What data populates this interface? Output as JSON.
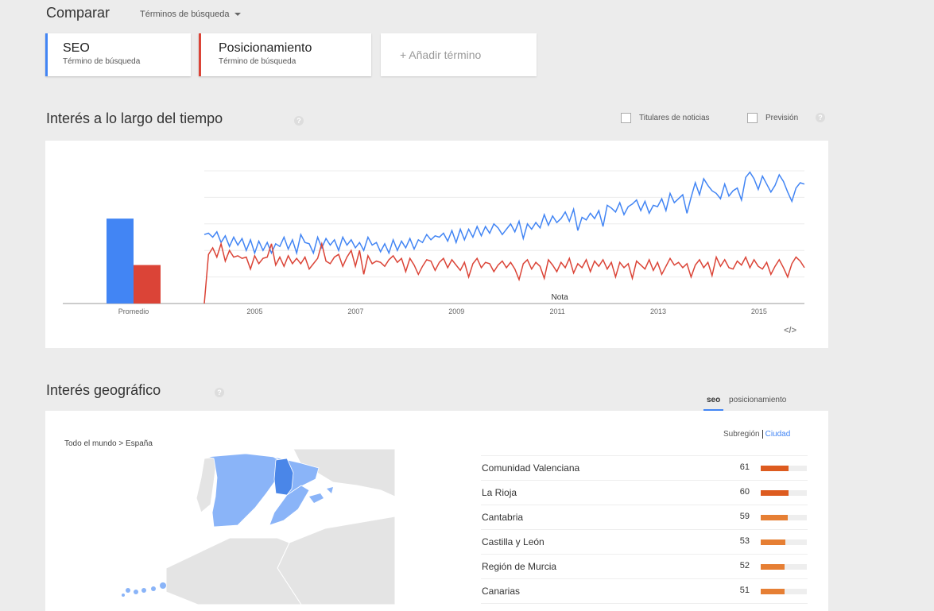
{
  "compare": {
    "title": "Comparar",
    "mode_label": "Términos de búsqueda"
  },
  "terms": [
    {
      "name": "SEO",
      "subtitle": "Término de búsqueda",
      "color": "#4285f4"
    },
    {
      "name": "Posicionamiento",
      "subtitle": "Término de búsqueda",
      "color": "#db4437"
    }
  ],
  "add_term_label": "+ Añadir término",
  "interest_over_time": {
    "title": "Interés a lo largo del tiempo",
    "help_glyph": "?",
    "checkboxes": {
      "news_headlines": {
        "label": "Titulares de noticias",
        "checked": false
      },
      "forecast": {
        "label": "Previsión",
        "checked": false
      }
    },
    "embed_glyph": "</>"
  },
  "chart_data": {
    "type": "line",
    "average_label": "Promedio",
    "average_values": {
      "SEO": 64,
      "Posicionamiento": 29
    },
    "x_ticks": [
      "2005",
      "2007",
      "2009",
      "2011",
      "2013",
      "2015"
    ],
    "annotation": "Nota",
    "ylim": [
      0,
      100
    ],
    "grid": true,
    "series": [
      {
        "name": "SEO",
        "color": "#4285f4",
        "start_year": 2004.0,
        "end_year": 2015.9,
        "values": [
          52,
          53,
          50,
          54,
          46,
          51,
          43,
          50,
          44,
          49,
          40,
          48,
          38,
          47,
          40,
          46,
          38,
          45,
          43,
          50,
          41,
          48,
          38,
          52,
          46,
          45,
          38,
          50,
          42,
          49,
          44,
          48,
          40,
          50,
          44,
          48,
          42,
          46,
          40,
          50,
          44,
          46,
          39,
          45,
          38,
          48,
          40,
          47,
          42,
          49,
          41,
          48,
          46,
          52,
          48,
          51,
          50,
          53,
          47,
          55,
          46,
          56,
          48,
          56,
          50,
          58,
          51,
          58,
          53,
          60,
          57,
          52,
          56,
          60,
          54,
          62,
          49,
          60,
          56,
          61,
          57,
          67,
          59,
          66,
          61,
          64,
          69,
          62,
          71,
          55,
          65,
          63,
          68,
          64,
          70,
          58,
          74,
          72,
          69,
          76,
          67,
          73,
          75,
          78,
          70,
          77,
          68,
          74,
          73,
          79,
          70,
          83,
          76,
          79,
          82,
          68,
          80,
          91,
          82,
          94,
          89,
          85,
          83,
          79,
          90,
          81,
          85,
          87,
          78,
          95,
          99,
          94,
          86,
          96,
          90,
          84,
          89,
          97,
          92,
          84,
          77,
          87,
          91,
          90
        ],
        "unit": "monthly"
      },
      {
        "name": "Posicionamiento",
        "color": "#db4437",
        "start_year": 2004.0,
        "end_year": 2015.9,
        "values": [
          0,
          37,
          42,
          35,
          45,
          32,
          40,
          35,
          36,
          34,
          35,
          26,
          36,
          30,
          34,
          35,
          45,
          29,
          35,
          28,
          36,
          30,
          34,
          30,
          35,
          26,
          30,
          34,
          45,
          32,
          30,
          35,
          37,
          28,
          35,
          40,
          28,
          40,
          22,
          36,
          30,
          32,
          31,
          28,
          33,
          36,
          31,
          34,
          24,
          34,
          29,
          22,
          28,
          33,
          32,
          25,
          31,
          34,
          27,
          33,
          29,
          25,
          31,
          20,
          30,
          34,
          27,
          31,
          30,
          24,
          29,
          32,
          27,
          31,
          26,
          18,
          30,
          33,
          26,
          31,
          28,
          19,
          33,
          29,
          24,
          31,
          27,
          34,
          23,
          30,
          27,
          33,
          24,
          32,
          28,
          33,
          26,
          31,
          20,
          31,
          27,
          30,
          19,
          32,
          29,
          26,
          33,
          25,
          31,
          22,
          28,
          34,
          29,
          31,
          27,
          30,
          20,
          29,
          33,
          27,
          31,
          21,
          35,
          28,
          33,
          27,
          26,
          32,
          29,
          35,
          27,
          33,
          28,
          26,
          31,
          22,
          28,
          33,
          27,
          20,
          30,
          35,
          32,
          27
        ]
      }
    ]
  },
  "geo": {
    "title": "Interés geográfico",
    "tabs": [
      "seo",
      "posicionamiento"
    ],
    "active_tab": "seo",
    "breadcrumb": "Todo el mundo > España",
    "subregion_label": "Subregión",
    "city_label": "Ciudad",
    "regions": [
      {
        "name": "Comunidad Valenciana",
        "value": 61,
        "color": "#dd5b1f"
      },
      {
        "name": "La Rioja",
        "value": 60,
        "color": "#dd5b1f"
      },
      {
        "name": "Cantabria",
        "value": 59,
        "color": "#e67f34"
      },
      {
        "name": "Castilla y León",
        "value": 53,
        "color": "#e67f34"
      },
      {
        "name": "Región de Murcia",
        "value": 52,
        "color": "#e67f34"
      },
      {
        "name": "Canarias",
        "value": 51,
        "color": "#e67f34"
      }
    ]
  }
}
